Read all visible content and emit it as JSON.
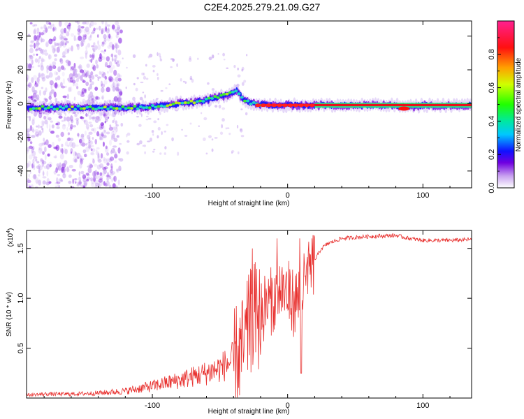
{
  "title": "C2E4.2025.279.21.09.G27",
  "chart_data": [
    {
      "type": "heatmap",
      "xlabel": "Height of straight line (km)",
      "ylabel": "Frequency (Hz)",
      "xlim": [
        -193,
        136
      ],
      "ylim": [
        -50,
        49
      ],
      "xticks": [
        -100,
        0,
        100
      ],
      "xtick_labels": [
        "-100",
        "0",
        "100"
      ],
      "yticks": [
        -40,
        -20,
        0,
        20,
        40
      ],
      "ytick_labels": [
        "-40",
        "-20",
        "0",
        "20",
        "40"
      ],
      "ridge_x": [
        -193,
        -160,
        -130,
        -100,
        -80,
        -60,
        -45,
        -38,
        -32,
        -25,
        -15,
        0,
        20,
        50,
        80,
        90,
        100,
        136
      ],
      "ridge_y": [
        -2.5,
        -2.5,
        -2.5,
        -2,
        0,
        2,
        5,
        8,
        2,
        0,
        -1,
        -1,
        -1,
        -1,
        -1,
        -2,
        -1,
        -1
      ],
      "colorbar": {
        "label": "Normalized spectral amplitude",
        "range": [
          0,
          1
        ],
        "ticks": [
          0.0,
          0.2,
          0.4,
          0.6,
          0.8
        ],
        "tick_labels": [
          "0.0",
          "0.2",
          "0.4",
          "0.6",
          "0.8"
        ]
      }
    },
    {
      "type": "line",
      "xlabel": "Height of straight line (km)",
      "ylabel": "SNR (10 * v/v)",
      "exponent_label": "(x10",
      "exponent_sup": "4",
      "exponent_close": ")",
      "xlim": [
        -193,
        136
      ],
      "ylim": [
        0,
        1.68
      ],
      "xticks": [
        -100,
        0,
        100
      ],
      "xtick_labels": [
        "-100",
        "0",
        "100"
      ],
      "yticks": [
        0.5,
        1.0,
        1.5
      ],
      "ytick_labels": [
        "0.5",
        "1.0",
        "1.5"
      ],
      "series": [
        {
          "name": "SNR",
          "color": "#e8312f",
          "x": [
            -193,
            -180,
            -160,
            -140,
            -120,
            -100,
            -80,
            -60,
            -50,
            -40,
            -32,
            -28,
            -25,
            -22,
            -18,
            -10,
            -5,
            0,
            5,
            10,
            15,
            20,
            25,
            30,
            40,
            60,
            80,
            90,
            100,
            120,
            136
          ],
          "y": [
            0.03,
            0.04,
            0.04,
            0.05,
            0.07,
            0.12,
            0.18,
            0.25,
            0.3,
            0.38,
            0.5,
            0.75,
            0.85,
            0.78,
            0.9,
            1.0,
            1.1,
            1.05,
            0.95,
            1.05,
            1.2,
            1.38,
            1.5,
            1.55,
            1.6,
            1.62,
            1.63,
            1.6,
            1.58,
            1.58,
            1.59
          ]
        }
      ]
    }
  ]
}
